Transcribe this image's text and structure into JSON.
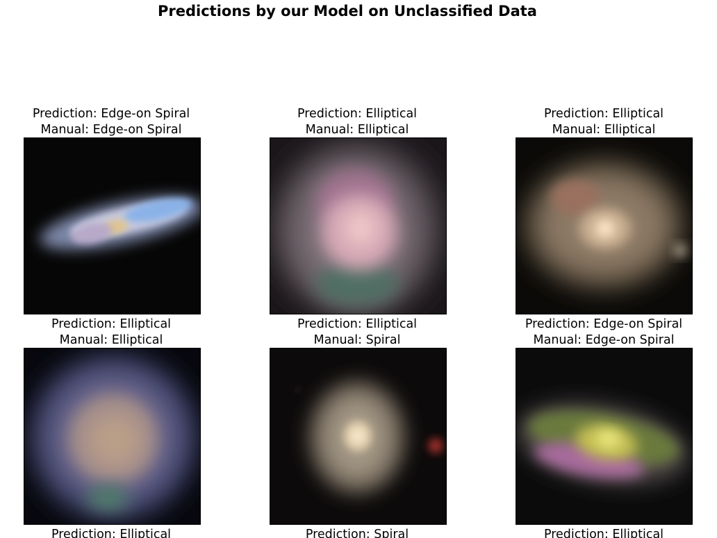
{
  "title": "Predictions by our Model on Unclassified Data",
  "prediction_prefix": "Prediction: ",
  "manual_prefix": "Manual: ",
  "panels": [
    {
      "prediction": "Edge-on Spiral",
      "manual": "Edge-on Spiral",
      "image_desc": "edge-on-galaxy"
    },
    {
      "prediction": "Elliptical",
      "manual": "Elliptical",
      "image_desc": "pink-diffuse-galaxy"
    },
    {
      "prediction": "Elliptical",
      "manual": "Elliptical",
      "image_desc": "bright-core-elliptical"
    },
    {
      "prediction": "Elliptical",
      "manual": "Elliptical",
      "image_desc": "round-blue-halo-galaxy"
    },
    {
      "prediction": "Elliptical",
      "manual": "Spiral",
      "image_desc": "small-bright-core-galaxy"
    },
    {
      "prediction": "Edge-on Spiral",
      "manual": "Edge-on Spiral",
      "image_desc": "tilted-yellow-galaxy"
    },
    {
      "prediction": "Elliptical",
      "manual": "",
      "image_desc": ""
    },
    {
      "prediction": "Spiral",
      "manual": "",
      "image_desc": ""
    },
    {
      "prediction": "Elliptical",
      "manual": "",
      "image_desc": ""
    }
  ]
}
